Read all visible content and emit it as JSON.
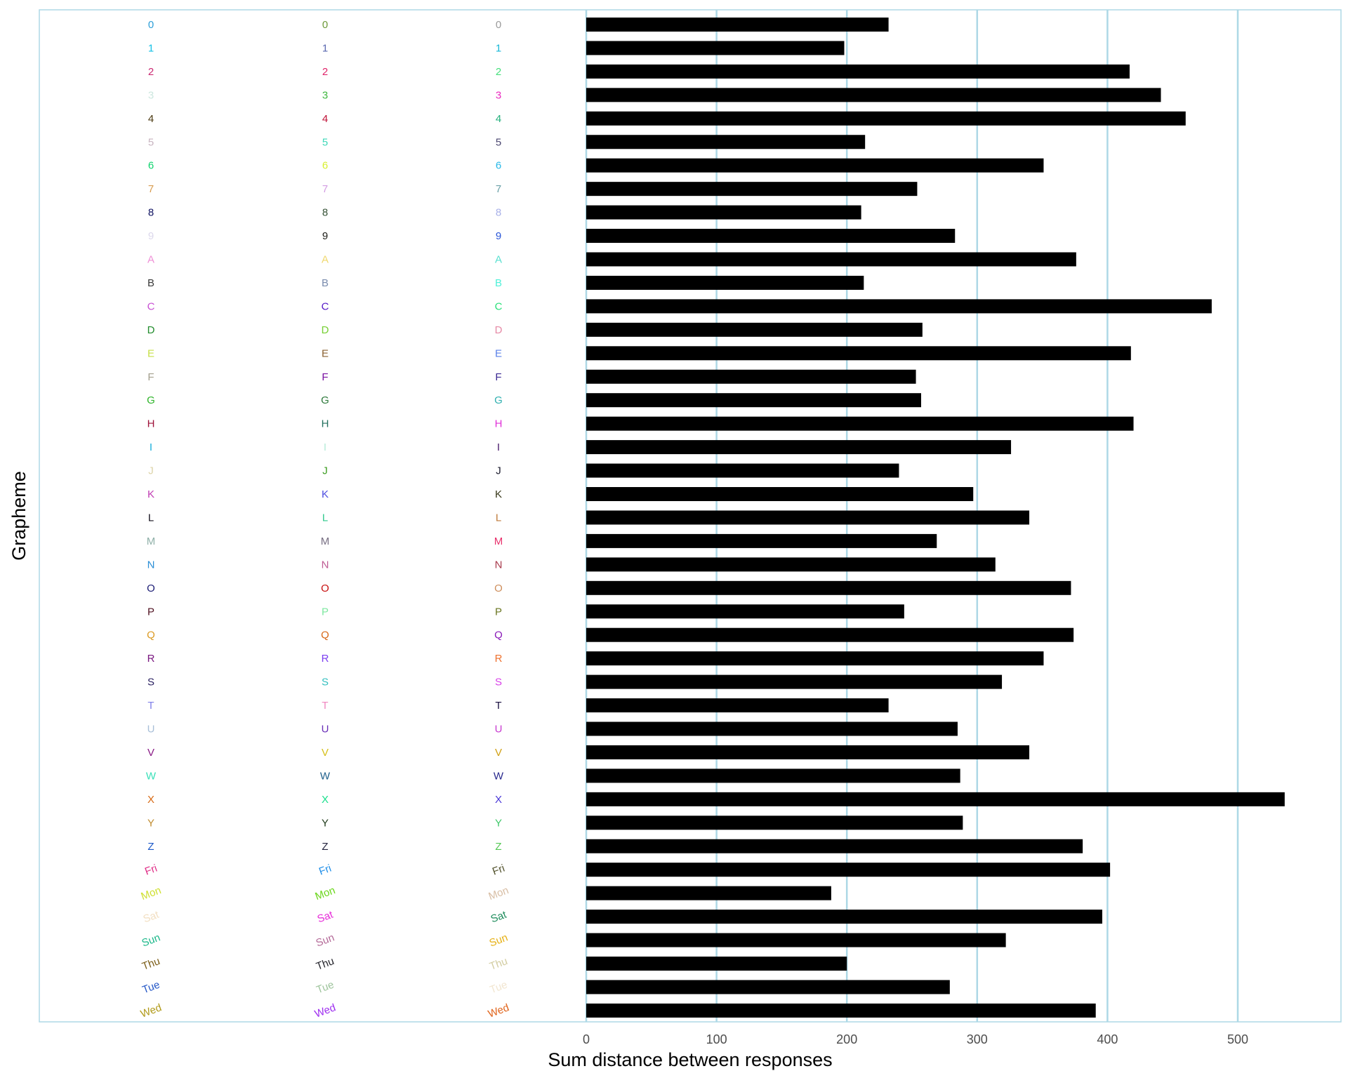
{
  "chart_data": {
    "type": "bar",
    "orientation": "horizontal",
    "xlabel": "Sum distance between responses",
    "ylabel": "Grapheme",
    "xlim": [
      0,
      580
    ],
    "xticks": [
      0,
      100,
      200,
      300,
      400,
      500
    ],
    "grid": "vertical major lines",
    "bar_color": "#000000",
    "grid_color": "#add8e6",
    "categories": [
      "0",
      "1",
      "2",
      "3",
      "4",
      "5",
      "6",
      "7",
      "8",
      "9",
      "A",
      "B",
      "C",
      "D",
      "E",
      "F",
      "G",
      "H",
      "I",
      "J",
      "K",
      "L",
      "M",
      "N",
      "O",
      "P",
      "Q",
      "R",
      "S",
      "T",
      "U",
      "V",
      "W",
      "X",
      "Y",
      "Z",
      "Fri",
      "Mon",
      "Sat",
      "Sun",
      "Thu",
      "Tue",
      "Wed"
    ],
    "values": [
      232,
      198,
      417,
      441,
      460,
      214,
      351,
      254,
      211,
      283,
      376,
      213,
      480,
      258,
      418,
      253,
      257,
      420,
      326,
      240,
      297,
      340,
      269,
      314,
      372,
      244,
      374,
      351,
      319,
      232,
      285,
      340,
      287,
      536,
      289,
      381,
      402,
      188,
      396,
      322,
      200,
      279,
      391
    ],
    "label_colors": [
      [
        "#2e9fd8",
        "#16c1e6",
        "#cb2a73",
        "#cde7df",
        "#4d3b13",
        "#c8b4c0",
        "#10d46e",
        "#d89c50",
        "#0e1160",
        "#dcd8ec",
        "#ef8fd6",
        "#3a3a3a",
        "#c84fd3",
        "#218c2c",
        "#c7e04a",
        "#a4a08e",
        "#2fb52a",
        "#9e1138",
        "#18aedc",
        "#ddd4a8",
        "#c03cb3",
        "#15121e",
        "#8fb0a8",
        "#2a8ed6",
        "#1a1b74",
        "#4f1120",
        "#dc9b24",
        "#7a1880",
        "#2c2363",
        "#8080e8",
        "#a8bfd8",
        "#8a1a86",
        "#38e0b8",
        "#d86a14",
        "#c08c30",
        "#1b58c8",
        "#e02f88",
        "#cfe030",
        "#f2dfc2",
        "#1cb88a",
        "#7b5d17",
        "#2356c6",
        "#b19a1a"
      ],
      [
        "#6d9a3a",
        "#5a68b0",
        "#e0246a",
        "#3fb83f",
        "#c01238",
        "#3ed8b8",
        "#d8f02f",
        "#d39ce3",
        "#355236",
        "#20201a",
        "#f0d86e",
        "#7a8cae",
        "#5418c6",
        "#76cf33",
        "#8a6030",
        "#7a12a2",
        "#2e7a3c",
        "#23705e",
        "#b6ecd8",
        "#3a9b1e",
        "#4c4ce0",
        "#2fc88c",
        "#776e82",
        "#be5c94",
        "#c81010",
        "#7ee8a0",
        "#d86818",
        "#7d40f0",
        "#35c0c0",
        "#f088c0",
        "#6a30b8",
        "#d6c01a",
        "#20608c",
        "#19e08c",
        "#1e3a1a",
        "#24243e",
        "#1f8ee8",
        "#6ad61a",
        "#e62ad8",
        "#b46a98",
        "#23232a",
        "#9ec49c",
        "#9e2ef0"
      ],
      [
        "#9a9a9a",
        "#18b8d8",
        "#46e07c",
        "#ea2ac0",
        "#24b07c",
        "#4a4670",
        "#26b8e8",
        "#6aa0a8",
        "#a8b0e8",
        "#2a56d8",
        "#5ae0d0",
        "#4ef0d8",
        "#2ae07a",
        "#e68aa6",
        "#5a80e8",
        "#3c2a94",
        "#30b0b0",
        "#e030d8",
        "#4a1a6c",
        "#1a1a2c",
        "#38381a",
        "#bf7a3a",
        "#e8306c",
        "#a83a4c",
        "#ce8e5c",
        "#6a7620",
        "#8a1ab8",
        "#ee7230",
        "#d842e8",
        "#1a1040",
        "#c83cd0",
        "#d0a014",
        "#2a2a8e",
        "#4a38d8",
        "#40c86a",
        "#54c854",
        "#52522c",
        "#d8bea4",
        "#1e8c5c",
        "#e6b014",
        "#d2cca0",
        "#f2e6d0",
        "#e0641c"
      ]
    ]
  }
}
